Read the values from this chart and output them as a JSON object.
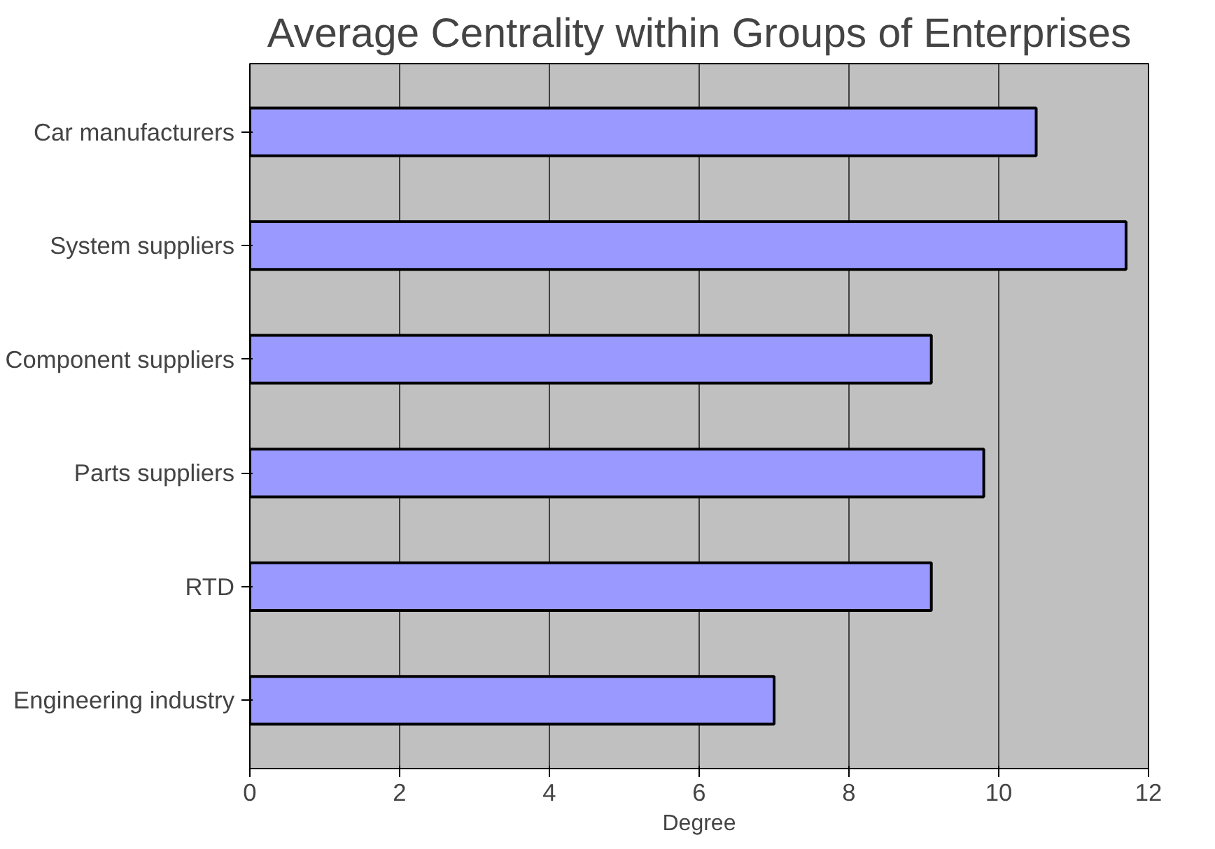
{
  "chart_data": {
    "type": "bar",
    "orientation": "horizontal",
    "title": "Average Centrality within Groups of Enterprises",
    "xlabel": "Degree",
    "categories": [
      "Car manufacturers",
      "System suppliers",
      "Component suppliers",
      "Parts suppliers",
      "RTD",
      "Engineering industry"
    ],
    "values": [
      10.5,
      11.7,
      9.1,
      9.8,
      9.1,
      7.0
    ],
    "color": "#9999ff",
    "xlim": [
      0,
      12
    ],
    "xticks": [
      0,
      2,
      4,
      6,
      8,
      10,
      12
    ],
    "grid": "x"
  }
}
